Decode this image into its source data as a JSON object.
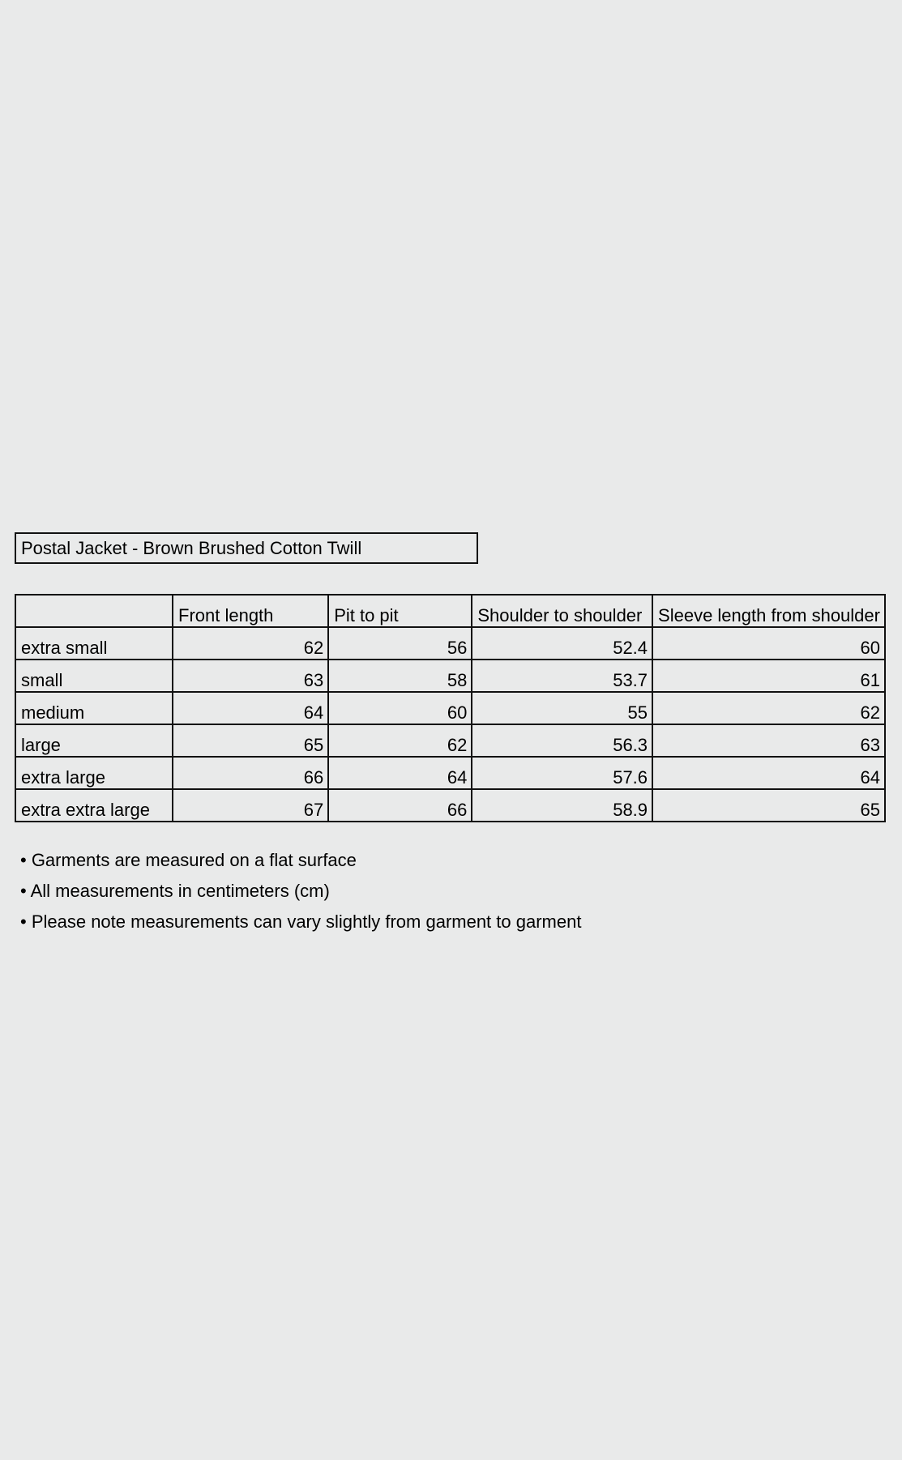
{
  "title": "Postal Jacket - Brown Brushed Cotton Twill",
  "table": {
    "headers": [
      "",
      "Front length",
      "Pit to pit",
      "Shoulder to shoulder",
      "Sleeve length from shoulder"
    ],
    "rows": [
      [
        "extra small",
        "62",
        "56",
        "52.4",
        "60"
      ],
      [
        "small",
        "63",
        "58",
        "53.7",
        "61"
      ],
      [
        "medium",
        "64",
        "60",
        "55",
        "62"
      ],
      [
        "large",
        "65",
        "62",
        "56.3",
        "63"
      ],
      [
        "extra large",
        "66",
        "64",
        "57.6",
        "64"
      ],
      [
        "extra extra large",
        "67",
        "66",
        "58.9",
        "65"
      ]
    ]
  },
  "notes": [
    "• Garments are measured on a flat surface",
    "• All measurements in centimeters (cm)",
    "• Please note measurements can vary slightly from garment to garment"
  ]
}
